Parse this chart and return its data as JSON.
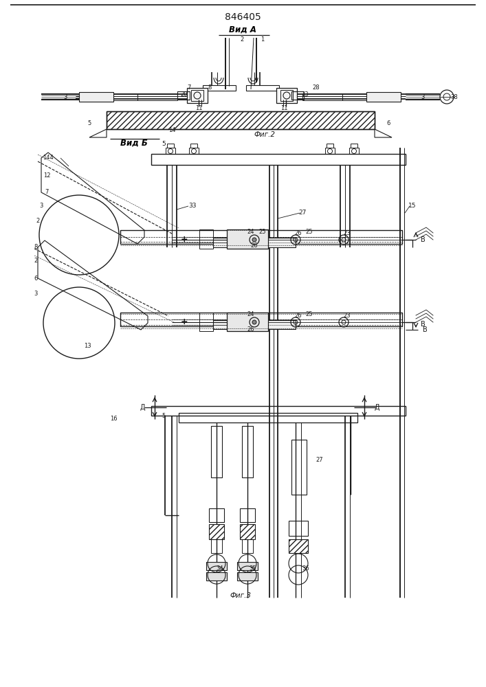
{
  "title": "846405",
  "view_a_label": "Вид А",
  "view_b_label": "Вид Б",
  "fig2_label": "Фиг.2",
  "fig3_label": "Фиг.3",
  "bg_color": "#ffffff",
  "line_color": "#1a1a1a",
  "fig_width": 7.07,
  "fig_height": 10.0,
  "dpi": 100
}
